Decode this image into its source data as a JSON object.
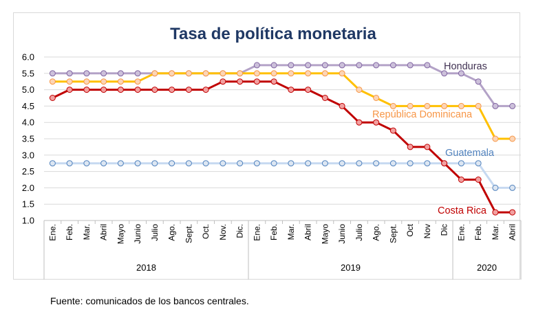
{
  "source_note": "Fuente: comunicados de los bancos centrales.",
  "chart_data": {
    "type": "line",
    "title": "Tasa de política monetaria",
    "xlabel": "",
    "ylabel": "",
    "ylim": [
      1.0,
      6.0
    ],
    "yticks": [
      "1.0",
      "1.5",
      "2.0",
      "2.5",
      "3.0",
      "3.5",
      "4.0",
      "4.5",
      "5.0",
      "5.5",
      "6.0"
    ],
    "grid": true,
    "legend": "labels next to lines",
    "categories": [
      "Ene.",
      "Feb.",
      "Mar.",
      "Abril",
      "Mayo",
      "Junio",
      "Julio",
      "Ago.",
      "Sept.",
      "Oct.",
      "Nov.",
      "Dic.",
      "Ene.",
      "Feb.",
      "Mar.",
      "Abril",
      "Mayo",
      "Junio",
      "Julio",
      "Ago.",
      "Sept.",
      "Oct",
      "Nov",
      "Dic",
      "Ene.",
      "Feb.",
      "Mar.",
      "Abril"
    ],
    "year_groups": [
      {
        "label": "2018",
        "count": 12
      },
      {
        "label": "2019",
        "count": 12
      },
      {
        "label": "2020",
        "count": 4
      }
    ],
    "series": [
      {
        "name": "Honduras",
        "color": "#8064a2",
        "marker_fill": "#ccc0da",
        "line_color": "#b3a2c7",
        "values": [
          5.5,
          5.5,
          5.5,
          5.5,
          5.5,
          5.5,
          5.5,
          5.5,
          5.5,
          5.5,
          5.5,
          5.5,
          5.75,
          5.75,
          5.75,
          5.75,
          5.75,
          5.75,
          5.75,
          5.75,
          5.75,
          5.75,
          5.75,
          5.5,
          5.5,
          5.25,
          4.5,
          4.5
        ]
      },
      {
        "name": "República Dominicana",
        "color": "#f79646",
        "marker_fill": "#fcd5b5",
        "line_color": "#ffc000",
        "values": [
          5.25,
          5.25,
          5.25,
          5.25,
          5.25,
          5.25,
          5.5,
          5.5,
          5.5,
          5.5,
          5.5,
          5.5,
          5.5,
          5.5,
          5.5,
          5.5,
          5.5,
          5.5,
          5.0,
          4.75,
          4.5,
          4.5,
          4.5,
          4.5,
          4.5,
          4.5,
          3.5,
          3.5
        ]
      },
      {
        "name": "Guatemala",
        "color": "#4f81bd",
        "marker_fill": "#dce6f2",
        "line_color": "#c6d9f1",
        "values": [
          2.75,
          2.75,
          2.75,
          2.75,
          2.75,
          2.75,
          2.75,
          2.75,
          2.75,
          2.75,
          2.75,
          2.75,
          2.75,
          2.75,
          2.75,
          2.75,
          2.75,
          2.75,
          2.75,
          2.75,
          2.75,
          2.75,
          2.75,
          2.75,
          2.75,
          2.75,
          2.0,
          2.0
        ]
      },
      {
        "name": "Costa Rica",
        "color": "#c00000",
        "marker_fill": "#f2a0a0",
        "line_color": "#c00000",
        "values": [
          4.75,
          5.0,
          5.0,
          5.0,
          5.0,
          5.0,
          5.0,
          5.0,
          5.0,
          5.0,
          5.25,
          5.25,
          5.25,
          5.25,
          5.0,
          5.0,
          4.75,
          4.5,
          4.0,
          4.0,
          3.75,
          3.25,
          3.25,
          2.75,
          2.25,
          2.25,
          1.25,
          1.25
        ]
      }
    ]
  }
}
